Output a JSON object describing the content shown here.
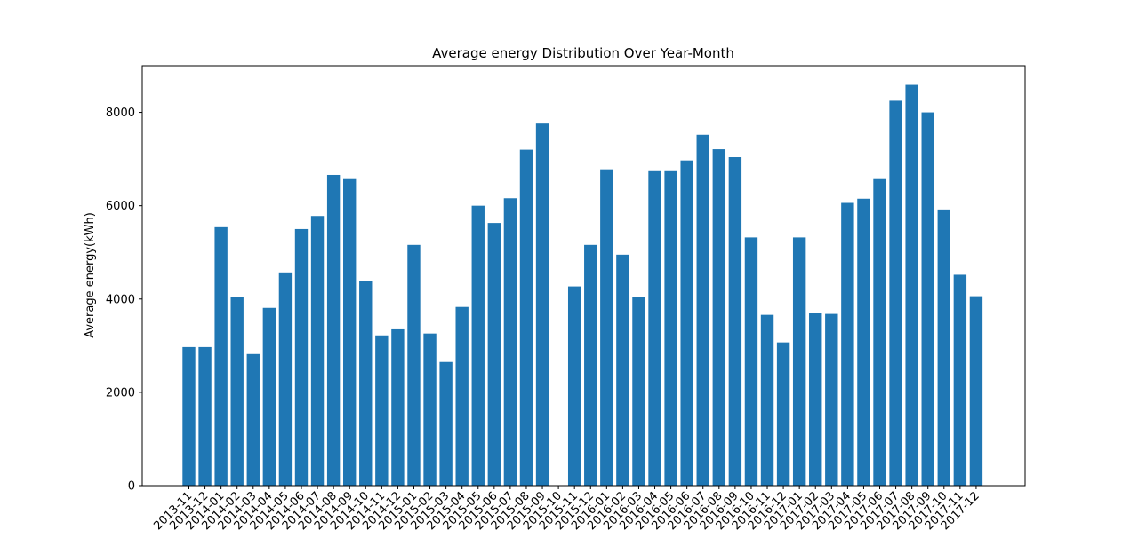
{
  "chart_data": {
    "type": "bar",
    "title": "Average energy Distribution Over Year-Month",
    "xlabel": "",
    "ylabel": "Average energy(kWh)",
    "ylim": [
      0,
      9000
    ],
    "yticks": [
      0,
      2000,
      4000,
      6000,
      8000
    ],
    "grid": false,
    "color": "#1f77b4",
    "categories": [
      "2013-11",
      "2013-12",
      "2014-01",
      "2014-02",
      "2014-03",
      "2014-04",
      "2014-05",
      "2014-06",
      "2014-07",
      "2014-08",
      "2014-09",
      "2014-10",
      "2014-11",
      "2014-12",
      "2015-01",
      "2015-02",
      "2015-03",
      "2015-04",
      "2015-05",
      "2015-06",
      "2015-07",
      "2015-08",
      "2015-09",
      "2015-10",
      "2015-11",
      "2015-12",
      "2016-01",
      "2016-02",
      "2016-03",
      "2016-04",
      "2016-05",
      "2016-06",
      "2016-07",
      "2016-08",
      "2016-09",
      "2016-10",
      "2016-11",
      "2016-12",
      "2017-01",
      "2017-02",
      "2017-03",
      "2017-04",
      "2017-05",
      "2017-06",
      "2017-07",
      "2017-08",
      "2017-09",
      "2017-10",
      "2017-11",
      "2017-12"
    ],
    "values": [
      2970,
      2970,
      5540,
      4040,
      2820,
      3810,
      4570,
      5500,
      5780,
      6660,
      6570,
      4380,
      3220,
      3350,
      5160,
      3260,
      2650,
      3830,
      6000,
      5630,
      6160,
      7200,
      7760,
      0,
      4270,
      5160,
      6780,
      4950,
      4040,
      6740,
      6740,
      6970,
      7520,
      7210,
      7040,
      5320,
      3660,
      3070,
      5320,
      3700,
      3680,
      6060,
      6150,
      6570,
      8250,
      8590,
      8000,
      5920,
      4520,
      4060
    ]
  }
}
